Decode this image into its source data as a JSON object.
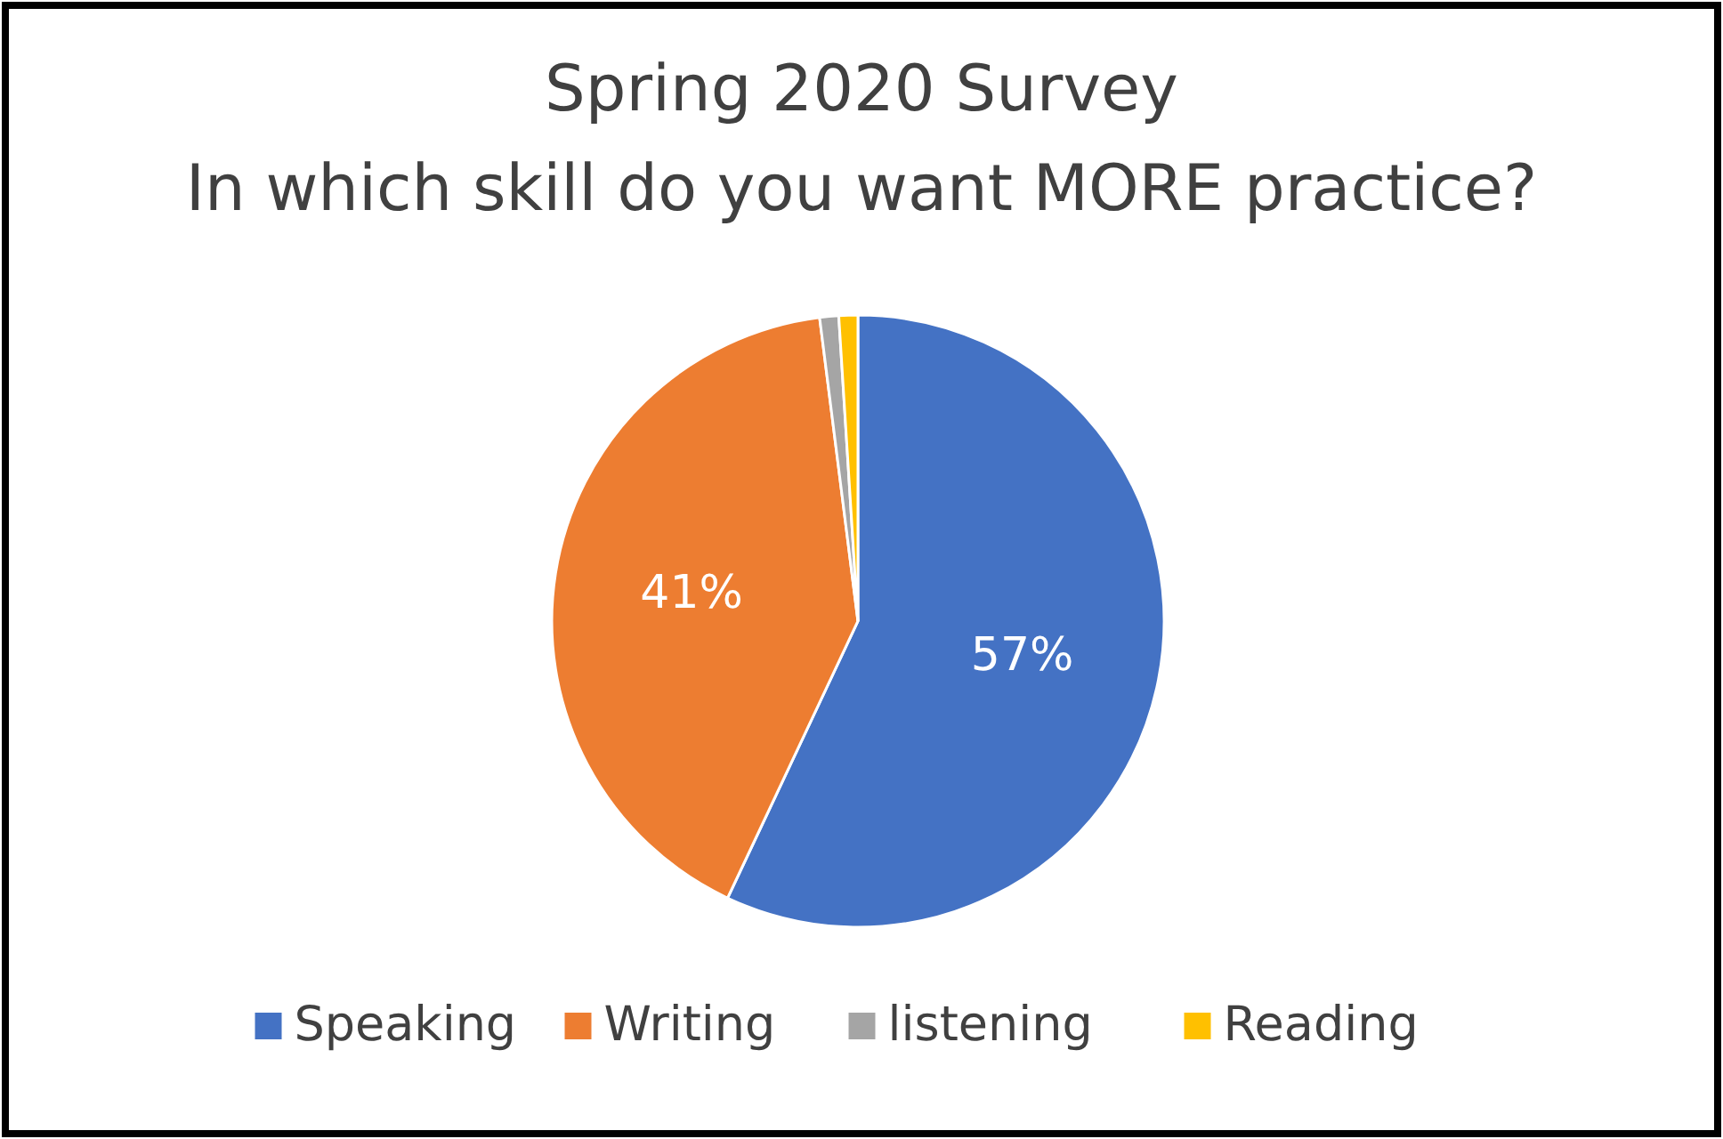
{
  "chart_data": {
    "type": "pie",
    "title": "Spring 2020 Survey",
    "subtitle": "In which skill do you want MORE practice?",
    "categories": [
      "Speaking",
      "Writing",
      "listening",
      "Reading"
    ],
    "values": [
      57,
      41,
      1,
      1
    ],
    "colors": [
      "#4472c4",
      "#ed7d31",
      "#a5a5a5",
      "#ffc000"
    ],
    "value_labels": [
      "57%",
      "41%",
      null,
      null
    ],
    "legend": "bottom"
  }
}
